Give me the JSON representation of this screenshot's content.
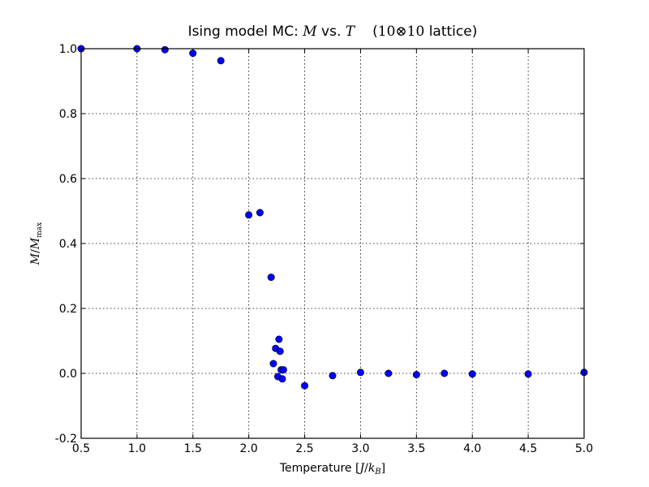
{
  "chart_data": {
    "type": "scatter",
    "title": {
      "prefix": "Ising model MC: ",
      "var_m": "M",
      "vs": " vs. ",
      "var_t": "T",
      "lattice_n1": "10",
      "lattice_op": "⊗",
      "lattice_n2": "10",
      "lattice_word": " lattice)",
      "open_paren": "("
    },
    "xlabel": {
      "text": "Temperature  ",
      "open": "[",
      "j": "J",
      "slash": "/",
      "k": "k",
      "sub": "B",
      "close": "]"
    },
    "ylabel": {
      "m": "M",
      "slash": "/",
      "m2": "M",
      "sub": "max"
    },
    "xlim": [
      0.5,
      5.0
    ],
    "ylim": [
      -0.2,
      1.0
    ],
    "x_ticks": [
      0.5,
      1.0,
      1.5,
      2.0,
      2.5,
      3.0,
      3.5,
      4.0,
      4.5,
      5.0
    ],
    "x_tick_labels": [
      "0.5",
      "1.0",
      "1.5",
      "2.0",
      "2.5",
      "3.0",
      "3.5",
      "4.0",
      "4.5",
      "5.0"
    ],
    "y_ticks": [
      -0.2,
      0.0,
      0.2,
      0.4,
      0.6,
      0.8,
      1.0
    ],
    "y_tick_labels": [
      "-0.2",
      "0.0",
      "0.2",
      "0.4",
      "0.6",
      "0.8",
      "1.0"
    ],
    "grid": true,
    "marker_color": "#0000ff",
    "marker_edge": "#000000",
    "points": [
      {
        "x": 0.5,
        "y": 1.0
      },
      {
        "x": 1.0,
        "y": 1.0
      },
      {
        "x": 1.25,
        "y": 0.997
      },
      {
        "x": 1.5,
        "y": 0.986
      },
      {
        "x": 1.75,
        "y": 0.963
      },
      {
        "x": 2.0,
        "y": 0.488
      },
      {
        "x": 2.1,
        "y": 0.495
      },
      {
        "x": 2.2,
        "y": 0.296
      },
      {
        "x": 2.22,
        "y": 0.03
      },
      {
        "x": 2.24,
        "y": 0.077
      },
      {
        "x": 2.26,
        "y": -0.01
      },
      {
        "x": 2.27,
        "y": 0.105
      },
      {
        "x": 2.28,
        "y": 0.068
      },
      {
        "x": 2.29,
        "y": 0.011
      },
      {
        "x": 2.3,
        "y": -0.017
      },
      {
        "x": 2.31,
        "y": 0.011
      },
      {
        "x": 2.5,
        "y": -0.038
      },
      {
        "x": 2.75,
        "y": -0.007
      },
      {
        "x": 3.0,
        "y": 0.003
      },
      {
        "x": 3.25,
        "y": 0.0
      },
      {
        "x": 3.5,
        "y": -0.004
      },
      {
        "x": 3.75,
        "y": 0.0
      },
      {
        "x": 4.0,
        "y": -0.002
      },
      {
        "x": 4.5,
        "y": -0.002
      },
      {
        "x": 5.0,
        "y": 0.003
      }
    ]
  }
}
